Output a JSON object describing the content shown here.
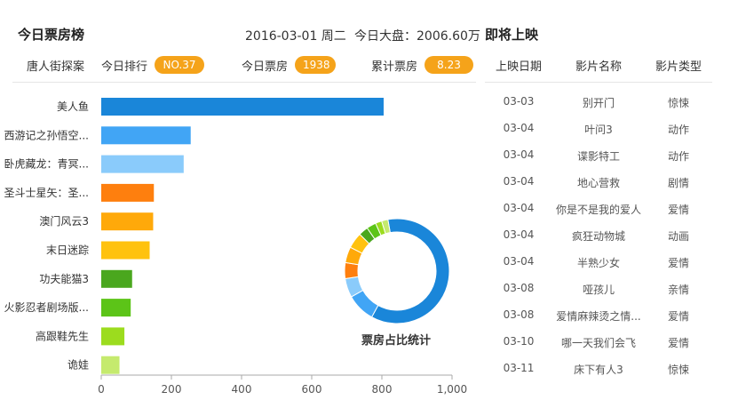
{
  "left": {
    "title": "今日票房榜",
    "date_text": "2016-03-01 周二",
    "total_text": "今日大盘：2006.60万",
    "movie_name": "唐人街探案",
    "rank": {
      "label": "今日排行",
      "value": "NO.37"
    },
    "today_box": {
      "label": "今日票房",
      "value": "1938"
    },
    "cumulative": {
      "label": "累计票房",
      "value": "8.23亿"
    }
  },
  "donut_label": "票房占比统计",
  "right": {
    "title": "即将上映",
    "headers": [
      "上映日期",
      "影片名称",
      "影片类型"
    ],
    "rows": [
      [
        "03-03",
        "别开门",
        "惊悚"
      ],
      [
        "03-04",
        "叶问3",
        "动作"
      ],
      [
        "03-04",
        "谍影特工",
        "动作"
      ],
      [
        "03-04",
        "地心营救",
        "剧情"
      ],
      [
        "03-04",
        "你是不是我的爱人",
        "爱情"
      ],
      [
        "03-04",
        "疯狂动物城",
        "动画"
      ],
      [
        "03-04",
        "半熟少女",
        "爱情"
      ],
      [
        "03-08",
        "哑孩儿",
        "亲情"
      ],
      [
        "03-08",
        "爱情麻辣烫之情...",
        "爱情"
      ],
      [
        "03-10",
        "哪一天我们会飞",
        "爱情"
      ],
      [
        "03-11",
        "床下有人3",
        "惊悚"
      ]
    ]
  },
  "colors": {
    "pill": "#f5a31a",
    "bars": [
      "#1a86d9",
      "#41a5f5",
      "#8acbfb",
      "#fe7f0e",
      "#ffa90a",
      "#ffc20e",
      "#4aa71e",
      "#5cc418",
      "#9cdc1e",
      "#c5ea6e"
    ]
  },
  "chart_data": [
    {
      "type": "bar",
      "orientation": "horizontal",
      "categories": [
        "美人鱼",
        "西游记之孙悟空...",
        "卧虎藏龙：青冥...",
        "圣斗士星矢：圣...",
        "澳门风云3",
        "末日迷踪",
        "功夫能猫3",
        "火影忍者剧场版...",
        "高跟鞋先生",
        "诡娃"
      ],
      "values": [
        805,
        255,
        235,
        150,
        148,
        138,
        88,
        84,
        66,
        52
      ],
      "xlim": [
        0,
        1000
      ],
      "xticks": [
        "0",
        "200",
        "400",
        "600",
        "800",
        "1,000"
      ]
    },
    {
      "type": "pie",
      "style": "donut",
      "title": "票房占比统计",
      "values": [
        62,
        9,
        6,
        5,
        5,
        5,
        3,
        3,
        2,
        2
      ]
    }
  ]
}
